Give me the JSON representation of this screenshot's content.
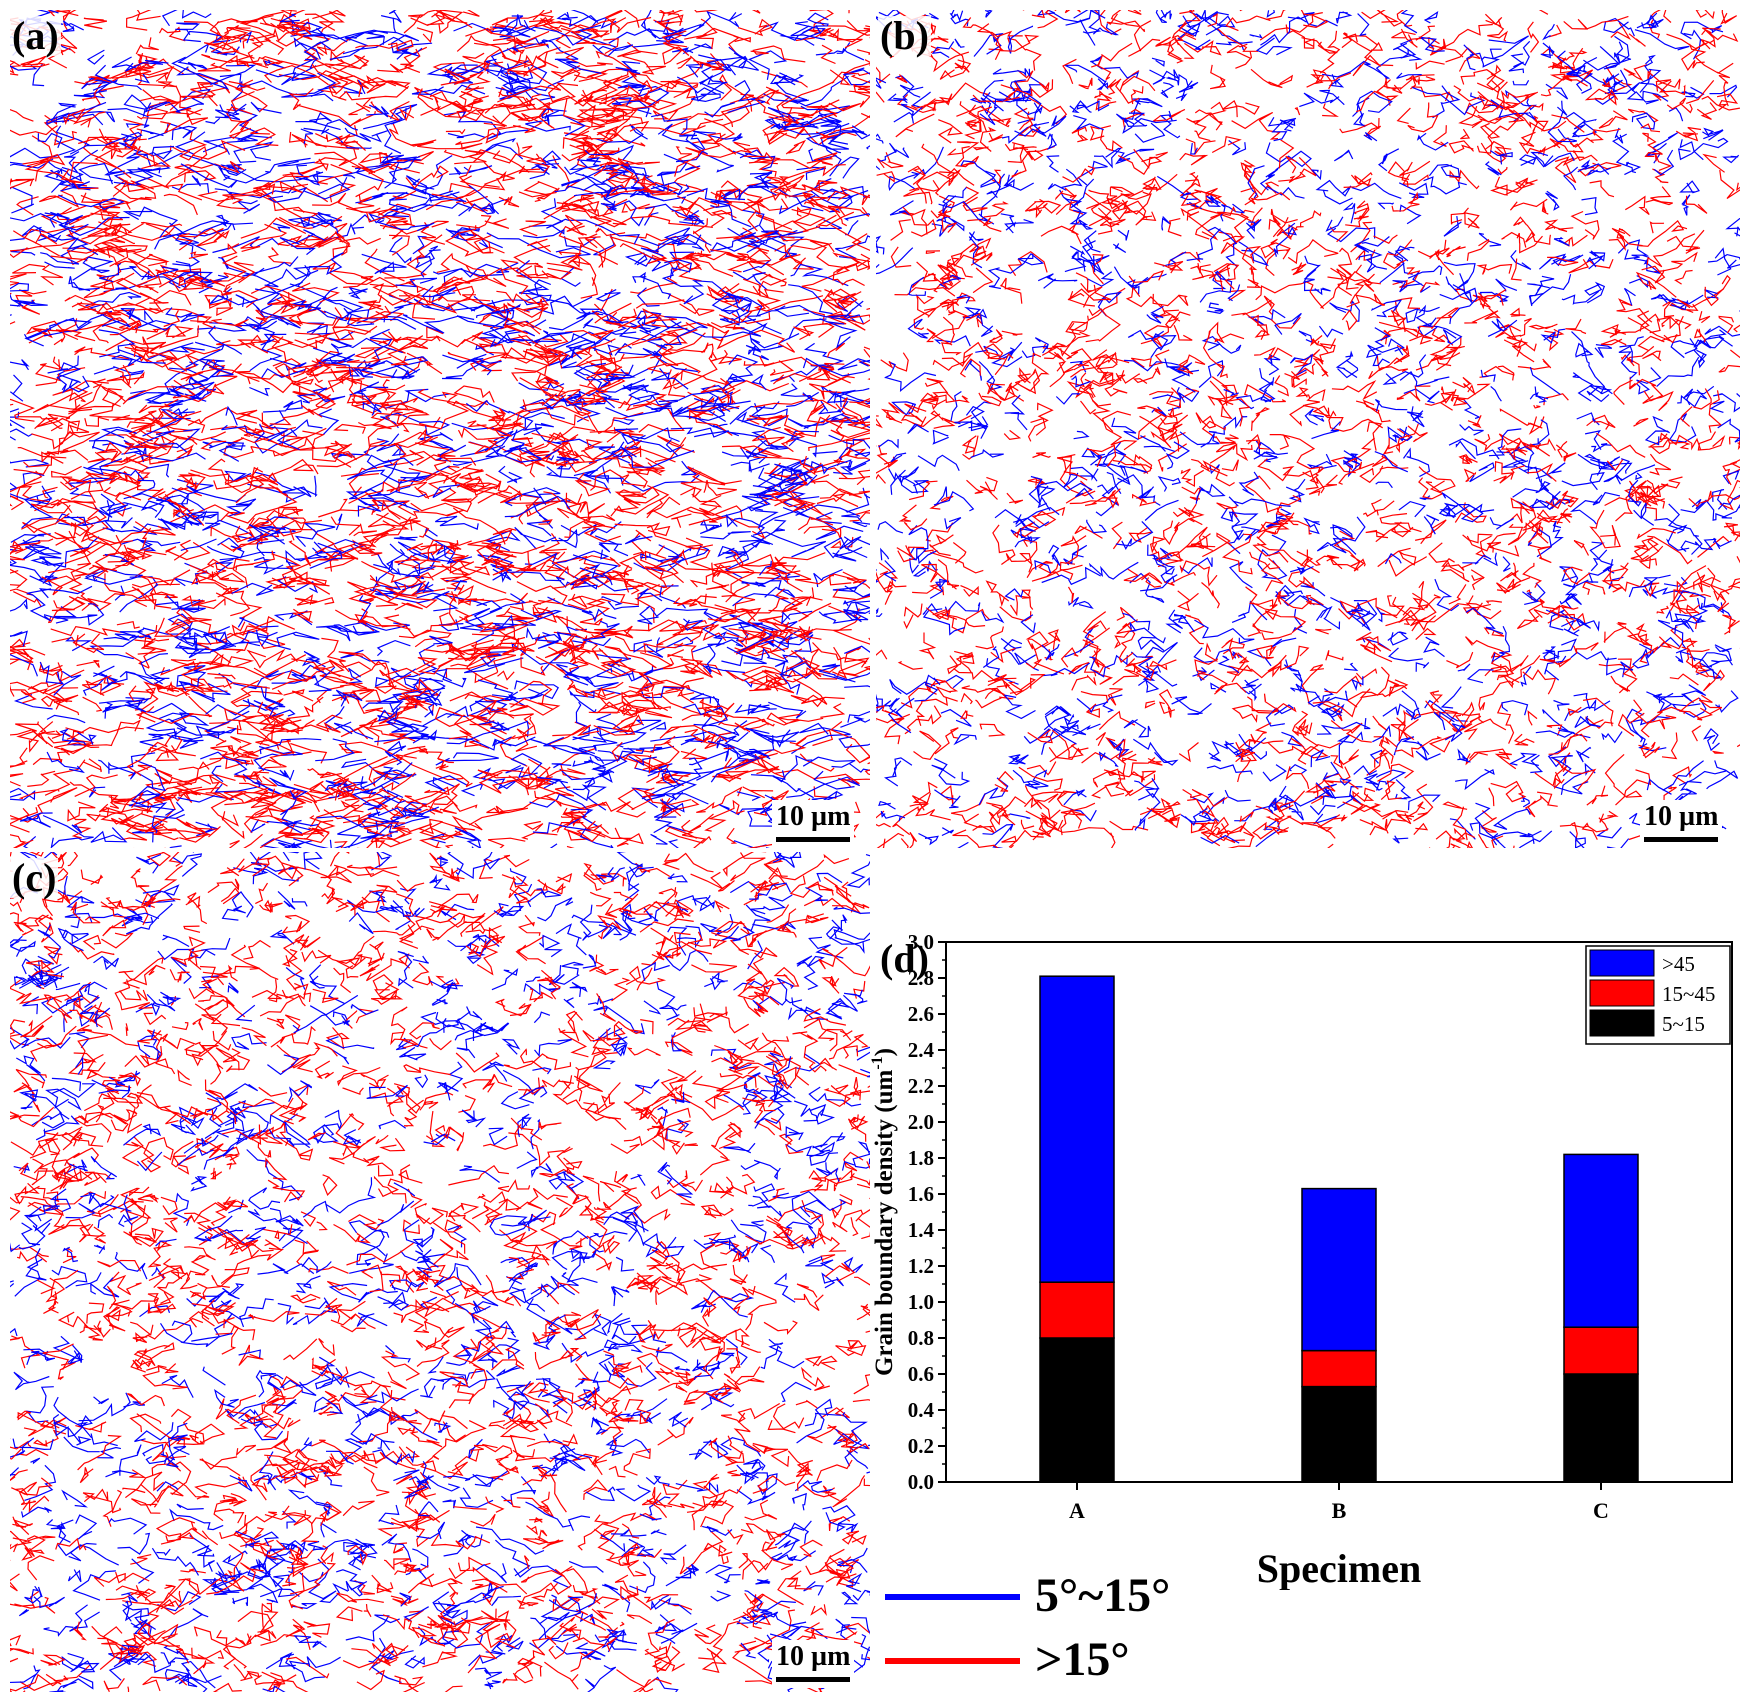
{
  "panels": {
    "a": {
      "label": "(a)",
      "scale": "10 µm"
    },
    "b": {
      "label": "(b)",
      "scale": "10 µm"
    },
    "c": {
      "label": "(c)",
      "scale": "10 µm"
    },
    "d": {
      "label": "(d)"
    }
  },
  "boundary_legend": [
    {
      "label": "5°~15°",
      "color": "#0000ff"
    },
    {
      "label": ">15°",
      "color": "#ff0000"
    }
  ],
  "chart_data": {
    "type": "bar",
    "stacked": true,
    "categories": [
      "A",
      "B",
      "C"
    ],
    "series": [
      {
        "name": "5~15",
        "color": "#000000",
        "values": [
          0.8,
          0.53,
          0.6
        ]
      },
      {
        "name": "15~45",
        "color": "#ff0000",
        "values": [
          0.31,
          0.2,
          0.26
        ]
      },
      {
        "name": ">45",
        "color": "#0000ff",
        "values": [
          1.7,
          0.9,
          0.96
        ]
      }
    ],
    "xlabel": "Specimen",
    "ylabel": "Grain boundary density (um",
    "ylabel_sup": "-1",
    "ylabel_close": ")",
    "ylim": [
      0,
      3.0
    ],
    "yticks": [
      "0.0",
      "0.2",
      "0.4",
      "0.6",
      "0.8",
      "1.0",
      "1.2",
      "1.4",
      "1.6",
      "1.8",
      "2.0",
      "2.2",
      "2.4",
      "2.6",
      "2.8",
      "3.0"
    ],
    "legend_position": "top-right",
    "legend_order": [
      ">45",
      "15~45",
      "5~15"
    ]
  }
}
